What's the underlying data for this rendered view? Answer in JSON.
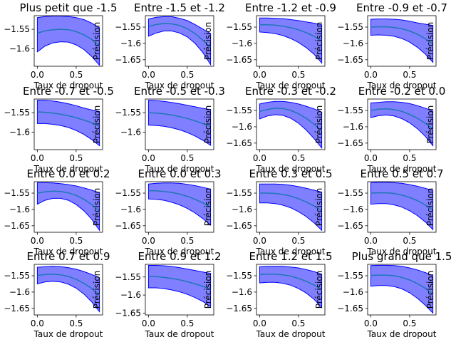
{
  "chart_data": {
    "type": "area",
    "layout": "4x4 grid of subplots",
    "xlabel": "Taux de dropout",
    "ylabel": "Précision",
    "band_color": "#0000ff",
    "line_color": "#1f77b4",
    "x": [
      0.0,
      0.1,
      0.2,
      0.3,
      0.4,
      0.5,
      0.6,
      0.7,
      0.8
    ],
    "subplots": [
      {
        "title": "Plus petit que -1.5",
        "ylim": [
          -1.645,
          -1.515
        ],
        "yticks": [
          -1.55,
          -1.6
        ],
        "mean": [
          -1.56,
          -1.554,
          -1.551,
          -1.55,
          -1.551,
          -1.556,
          -1.564,
          -1.576,
          -1.592
        ],
        "lower": [
          -1.608,
          -1.593,
          -1.585,
          -1.582,
          -1.583,
          -1.59,
          -1.602,
          -1.62,
          -1.642
        ],
        "upper": [
          -1.52,
          -1.517,
          -1.516,
          -1.516,
          -1.517,
          -1.52,
          -1.525,
          -1.534,
          -1.546
        ]
      },
      {
        "title": "Entre -1.5 et -1.2",
        "ylim": [
          -1.67,
          -1.515
        ],
        "yticks": [
          -1.55,
          -1.6,
          -1.65
        ],
        "mean": [
          -1.548,
          -1.542,
          -1.539,
          -1.54,
          -1.545,
          -1.555,
          -1.57,
          -1.59,
          -1.613
        ],
        "lower": [
          -1.578,
          -1.568,
          -1.562,
          -1.562,
          -1.568,
          -1.58,
          -1.6,
          -1.628,
          -1.665
        ],
        "upper": [
          -1.525,
          -1.52,
          -1.518,
          -1.518,
          -1.523,
          -1.53,
          -1.542,
          -1.556,
          -1.57
        ]
      },
      {
        "title": "Entre -1.2 et -0.9",
        "ylim": [
          -1.67,
          -1.515
        ],
        "yticks": [
          -1.55,
          -1.6,
          -1.65
        ],
        "mean": [
          -1.543,
          -1.543,
          -1.544,
          -1.547,
          -1.552,
          -1.558,
          -1.567,
          -1.578,
          -1.592
        ],
        "lower": [
          -1.565,
          -1.567,
          -1.57,
          -1.576,
          -1.585,
          -1.597,
          -1.613,
          -1.633,
          -1.66
        ],
        "upper": [
          -1.522,
          -1.522,
          -1.523,
          -1.524,
          -1.527,
          -1.53,
          -1.534,
          -1.538,
          -1.543
        ]
      },
      {
        "title": "Entre -0.9 et -0.7",
        "ylim": [
          -1.67,
          -1.515
        ],
        "yticks": [
          -1.55,
          -1.6,
          -1.65
        ],
        "mean": [
          -1.55,
          -1.549,
          -1.549,
          -1.551,
          -1.555,
          -1.562,
          -1.572,
          -1.585,
          -1.602
        ],
        "lower": [
          -1.575,
          -1.574,
          -1.575,
          -1.578,
          -1.585,
          -1.596,
          -1.612,
          -1.632,
          -1.658
        ],
        "upper": [
          -1.526,
          -1.525,
          -1.525,
          -1.526,
          -1.528,
          -1.532,
          -1.537,
          -1.541,
          -1.545
        ]
      },
      {
        "title": "Entre -0.7 et -0.5",
        "ylim": [
          -1.645,
          -1.515
        ],
        "yticks": [
          -1.55,
          -1.6
        ],
        "mean": [
          -1.548,
          -1.549,
          -1.551,
          -1.554,
          -1.558,
          -1.563,
          -1.569,
          -1.576,
          -1.585
        ],
        "lower": [
          -1.578,
          -1.578,
          -1.58,
          -1.583,
          -1.588,
          -1.596,
          -1.606,
          -1.619,
          -1.635
        ],
        "upper": [
          -1.518,
          -1.518,
          -1.52,
          -1.523,
          -1.527,
          -1.532,
          -1.538,
          -1.543,
          -1.547
        ]
      },
      {
        "title": "Entre -0.5 et -0.3",
        "ylim": [
          -1.645,
          -1.515
        ],
        "yticks": [
          -1.55,
          -1.6
        ],
        "mean": [
          -1.55,
          -1.551,
          -1.553,
          -1.556,
          -1.56,
          -1.565,
          -1.571,
          -1.578,
          -1.586
        ],
        "lower": [
          -1.582,
          -1.583,
          -1.585,
          -1.589,
          -1.594,
          -1.601,
          -1.61,
          -1.621,
          -1.634
        ],
        "upper": [
          -1.518,
          -1.519,
          -1.521,
          -1.524,
          -1.527,
          -1.531,
          -1.535,
          -1.539,
          -1.542
        ]
      },
      {
        "title": "Entre -0.3 et -0.2",
        "ylim": [
          -1.67,
          -1.515
        ],
        "yticks": [
          -1.55,
          -1.6,
          -1.65
        ],
        "mean": [
          -1.553,
          -1.547,
          -1.543,
          -1.544,
          -1.55,
          -1.56,
          -1.574,
          -1.592,
          -1.613
        ],
        "lower": [
          -1.576,
          -1.567,
          -1.563,
          -1.565,
          -1.574,
          -1.589,
          -1.61,
          -1.636,
          -1.665
        ],
        "upper": [
          -1.53,
          -1.525,
          -1.522,
          -1.522,
          -1.525,
          -1.53,
          -1.537,
          -1.545,
          -1.555
        ]
      },
      {
        "title": "Entre -0.2 et 0.0",
        "ylim": [
          -1.67,
          -1.515
        ],
        "yticks": [
          -1.55,
          -1.6,
          -1.65
        ],
        "mean": [
          -1.55,
          -1.546,
          -1.545,
          -1.547,
          -1.553,
          -1.562,
          -1.574,
          -1.589,
          -1.606
        ],
        "lower": [
          -1.572,
          -1.566,
          -1.564,
          -1.567,
          -1.575,
          -1.588,
          -1.606,
          -1.629,
          -1.658
        ],
        "upper": [
          -1.527,
          -1.525,
          -1.523,
          -1.523,
          -1.525,
          -1.529,
          -1.535,
          -1.543,
          -1.552
        ]
      },
      {
        "title": "Entre 0.0 et 0.2",
        "ylim": [
          -1.67,
          -1.515
        ],
        "yticks": [
          -1.55,
          -1.6,
          -1.65
        ],
        "mean": [
          -1.55,
          -1.546,
          -1.544,
          -1.545,
          -1.549,
          -1.557,
          -1.569,
          -1.585,
          -1.606
        ],
        "lower": [
          -1.584,
          -1.572,
          -1.566,
          -1.566,
          -1.572,
          -1.585,
          -1.604,
          -1.63,
          -1.664
        ],
        "upper": [
          -1.518,
          -1.518,
          -1.519,
          -1.521,
          -1.524,
          -1.528,
          -1.534,
          -1.541,
          -1.549
        ]
      },
      {
        "title": "Entre 0.0 et 0.3",
        "ylim": [
          -1.67,
          -1.515
        ],
        "yticks": [
          -1.55,
          -1.6,
          -1.65
        ],
        "mean": [
          -1.543,
          -1.543,
          -1.545,
          -1.548,
          -1.553,
          -1.56,
          -1.569,
          -1.58,
          -1.593
        ],
        "lower": [
          -1.568,
          -1.569,
          -1.572,
          -1.578,
          -1.586,
          -1.597,
          -1.611,
          -1.628,
          -1.648
        ],
        "upper": [
          -1.522,
          -1.52,
          -1.519,
          -1.519,
          -1.52,
          -1.523,
          -1.527,
          -1.532,
          -1.538
        ]
      },
      {
        "title": "Entre 0.3 et 0.5",
        "ylim": [
          -1.67,
          -1.515
        ],
        "yticks": [
          -1.55,
          -1.6,
          -1.65
        ],
        "mean": [
          -1.55,
          -1.55,
          -1.551,
          -1.554,
          -1.559,
          -1.567,
          -1.577,
          -1.589,
          -1.604
        ],
        "lower": [
          -1.58,
          -1.58,
          -1.582,
          -1.587,
          -1.595,
          -1.607,
          -1.622,
          -1.641,
          -1.664
        ],
        "upper": [
          -1.522,
          -1.522,
          -1.522,
          -1.523,
          -1.526,
          -1.53,
          -1.535,
          -1.541,
          -1.547
        ]
      },
      {
        "title": "Entre 0.5 et 0.7",
        "ylim": [
          -1.67,
          -1.515
        ],
        "yticks": [
          -1.55,
          -1.6,
          -1.65
        ],
        "mean": [
          -1.55,
          -1.549,
          -1.549,
          -1.551,
          -1.556,
          -1.563,
          -1.573,
          -1.586,
          -1.602
        ],
        "lower": [
          -1.584,
          -1.582,
          -1.582,
          -1.586,
          -1.593,
          -1.604,
          -1.619,
          -1.638,
          -1.662
        ],
        "upper": [
          -1.518,
          -1.517,
          -1.517,
          -1.518,
          -1.52,
          -1.524,
          -1.529,
          -1.535,
          -1.542
        ]
      },
      {
        "title": "Entre 0.7 et 0.9",
        "ylim": [
          -1.67,
          -1.515
        ],
        "yticks": [
          -1.55,
          -1.6,
          -1.65
        ],
        "mean": [
          -1.549,
          -1.546,
          -1.545,
          -1.547,
          -1.552,
          -1.561,
          -1.573,
          -1.589,
          -1.608
        ],
        "lower": [
          -1.575,
          -1.569,
          -1.567,
          -1.569,
          -1.576,
          -1.588,
          -1.606,
          -1.63,
          -1.66
        ],
        "upper": [
          -1.524,
          -1.522,
          -1.521,
          -1.522,
          -1.525,
          -1.53,
          -1.537,
          -1.546,
          -1.556
        ]
      },
      {
        "title": "Entre 0.9 et 1.2",
        "ylim": [
          -1.655,
          -1.515
        ],
        "yticks": [
          -1.55,
          -1.6,
          -1.65
        ],
        "mean": [
          -1.548,
          -1.549,
          -1.551,
          -1.554,
          -1.558,
          -1.563,
          -1.569,
          -1.576,
          -1.584
        ],
        "lower": [
          -1.58,
          -1.58,
          -1.582,
          -1.586,
          -1.591,
          -1.598,
          -1.607,
          -1.618,
          -1.632
        ],
        "upper": [
          -1.518,
          -1.518,
          -1.519,
          -1.521,
          -1.524,
          -1.528,
          -1.532,
          -1.536,
          -1.54
        ]
      },
      {
        "title": "Entre 1.2 et 1.5",
        "ylim": [
          -1.67,
          -1.515
        ],
        "yticks": [
          -1.55,
          -1.6,
          -1.65
        ],
        "mean": [
          -1.546,
          -1.545,
          -1.545,
          -1.547,
          -1.551,
          -1.558,
          -1.567,
          -1.578,
          -1.592
        ],
        "lower": [
          -1.572,
          -1.57,
          -1.57,
          -1.573,
          -1.579,
          -1.589,
          -1.603,
          -1.622,
          -1.647
        ],
        "upper": [
          -1.522,
          -1.521,
          -1.521,
          -1.521,
          -1.523,
          -1.526,
          -1.531,
          -1.537,
          -1.545
        ]
      },
      {
        "title": "Plus grand que 1.5",
        "ylim": [
          -1.67,
          -1.515
        ],
        "yticks": [
          -1.55,
          -1.6,
          -1.65
        ],
        "mean": [
          -1.549,
          -1.548,
          -1.548,
          -1.55,
          -1.555,
          -1.563,
          -1.574,
          -1.588,
          -1.606
        ],
        "lower": [
          -1.582,
          -1.58,
          -1.58,
          -1.583,
          -1.59,
          -1.602,
          -1.619,
          -1.64,
          -1.664
        ],
        "upper": [
          -1.519,
          -1.518,
          -1.518,
          -1.519,
          -1.521,
          -1.526,
          -1.532,
          -1.54,
          -1.55
        ]
      }
    ],
    "xticks": [
      0.0,
      0.5
    ],
    "xlim": [
      -0.04,
      0.84
    ],
    "grid": false,
    "legend": "none"
  }
}
